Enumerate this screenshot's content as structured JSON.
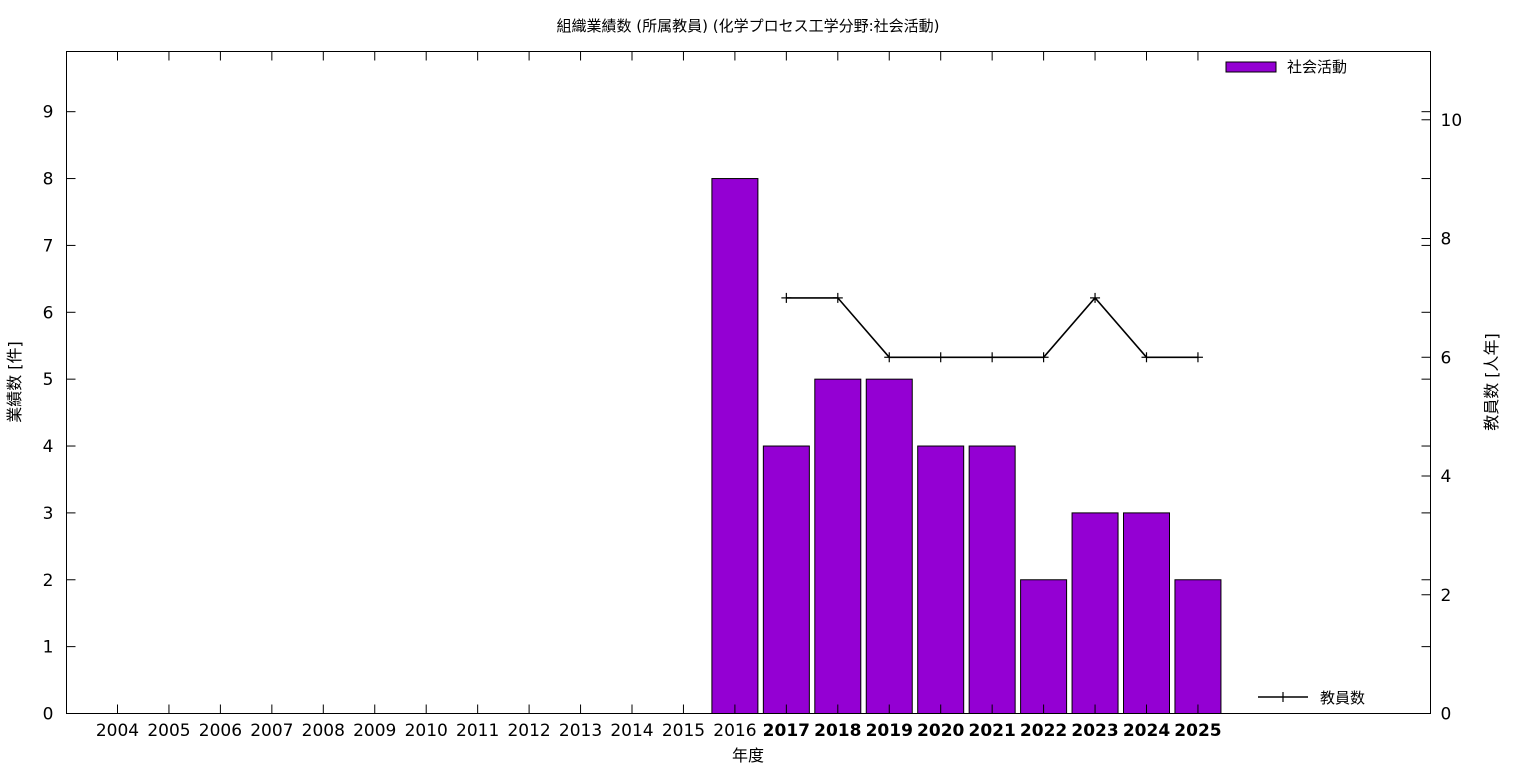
{
  "chart_data": {
    "type": "bar",
    "title": "組織業績数 (所属教員) (化学プロセス工学分野:社会活動)",
    "xlabel": "年度",
    "ylabel": "業績数 [件]",
    "y2label": "教員数 [人年]",
    "categories": [
      "2004",
      "2005",
      "2006",
      "2007",
      "2008",
      "2009",
      "2010",
      "2011",
      "2012",
      "2013",
      "2014",
      "2015",
      "2016",
      "2017",
      "2018",
      "2019",
      "2020",
      "2021",
      "2022",
      "2023",
      "2024",
      "2025"
    ],
    "bold_from_category": "2017",
    "ylim": [
      0,
      9.9
    ],
    "yticks": [
      0,
      1,
      2,
      3,
      4,
      5,
      6,
      7,
      8,
      9
    ],
    "y2lim": [
      0,
      11.15
    ],
    "y2ticks": [
      0,
      2,
      4,
      6,
      8,
      10
    ],
    "grid": false,
    "series": [
      {
        "name": "社会活動",
        "kind": "bar",
        "axis": "y",
        "color": "#9400d3",
        "values": [
          null,
          null,
          null,
          null,
          null,
          null,
          null,
          null,
          null,
          null,
          null,
          null,
          8,
          4,
          5,
          5,
          4,
          4,
          2,
          3,
          3,
          2
        ],
        "legend_position": "top-right"
      },
      {
        "name": "教員数",
        "kind": "line",
        "axis": "y2",
        "color": "#000000",
        "marker": "plus",
        "values": [
          null,
          null,
          null,
          null,
          null,
          null,
          null,
          null,
          null,
          null,
          null,
          null,
          null,
          7,
          7,
          6,
          6,
          6,
          6,
          7,
          6,
          6
        ],
        "legend_position": "bottom-right"
      }
    ]
  }
}
